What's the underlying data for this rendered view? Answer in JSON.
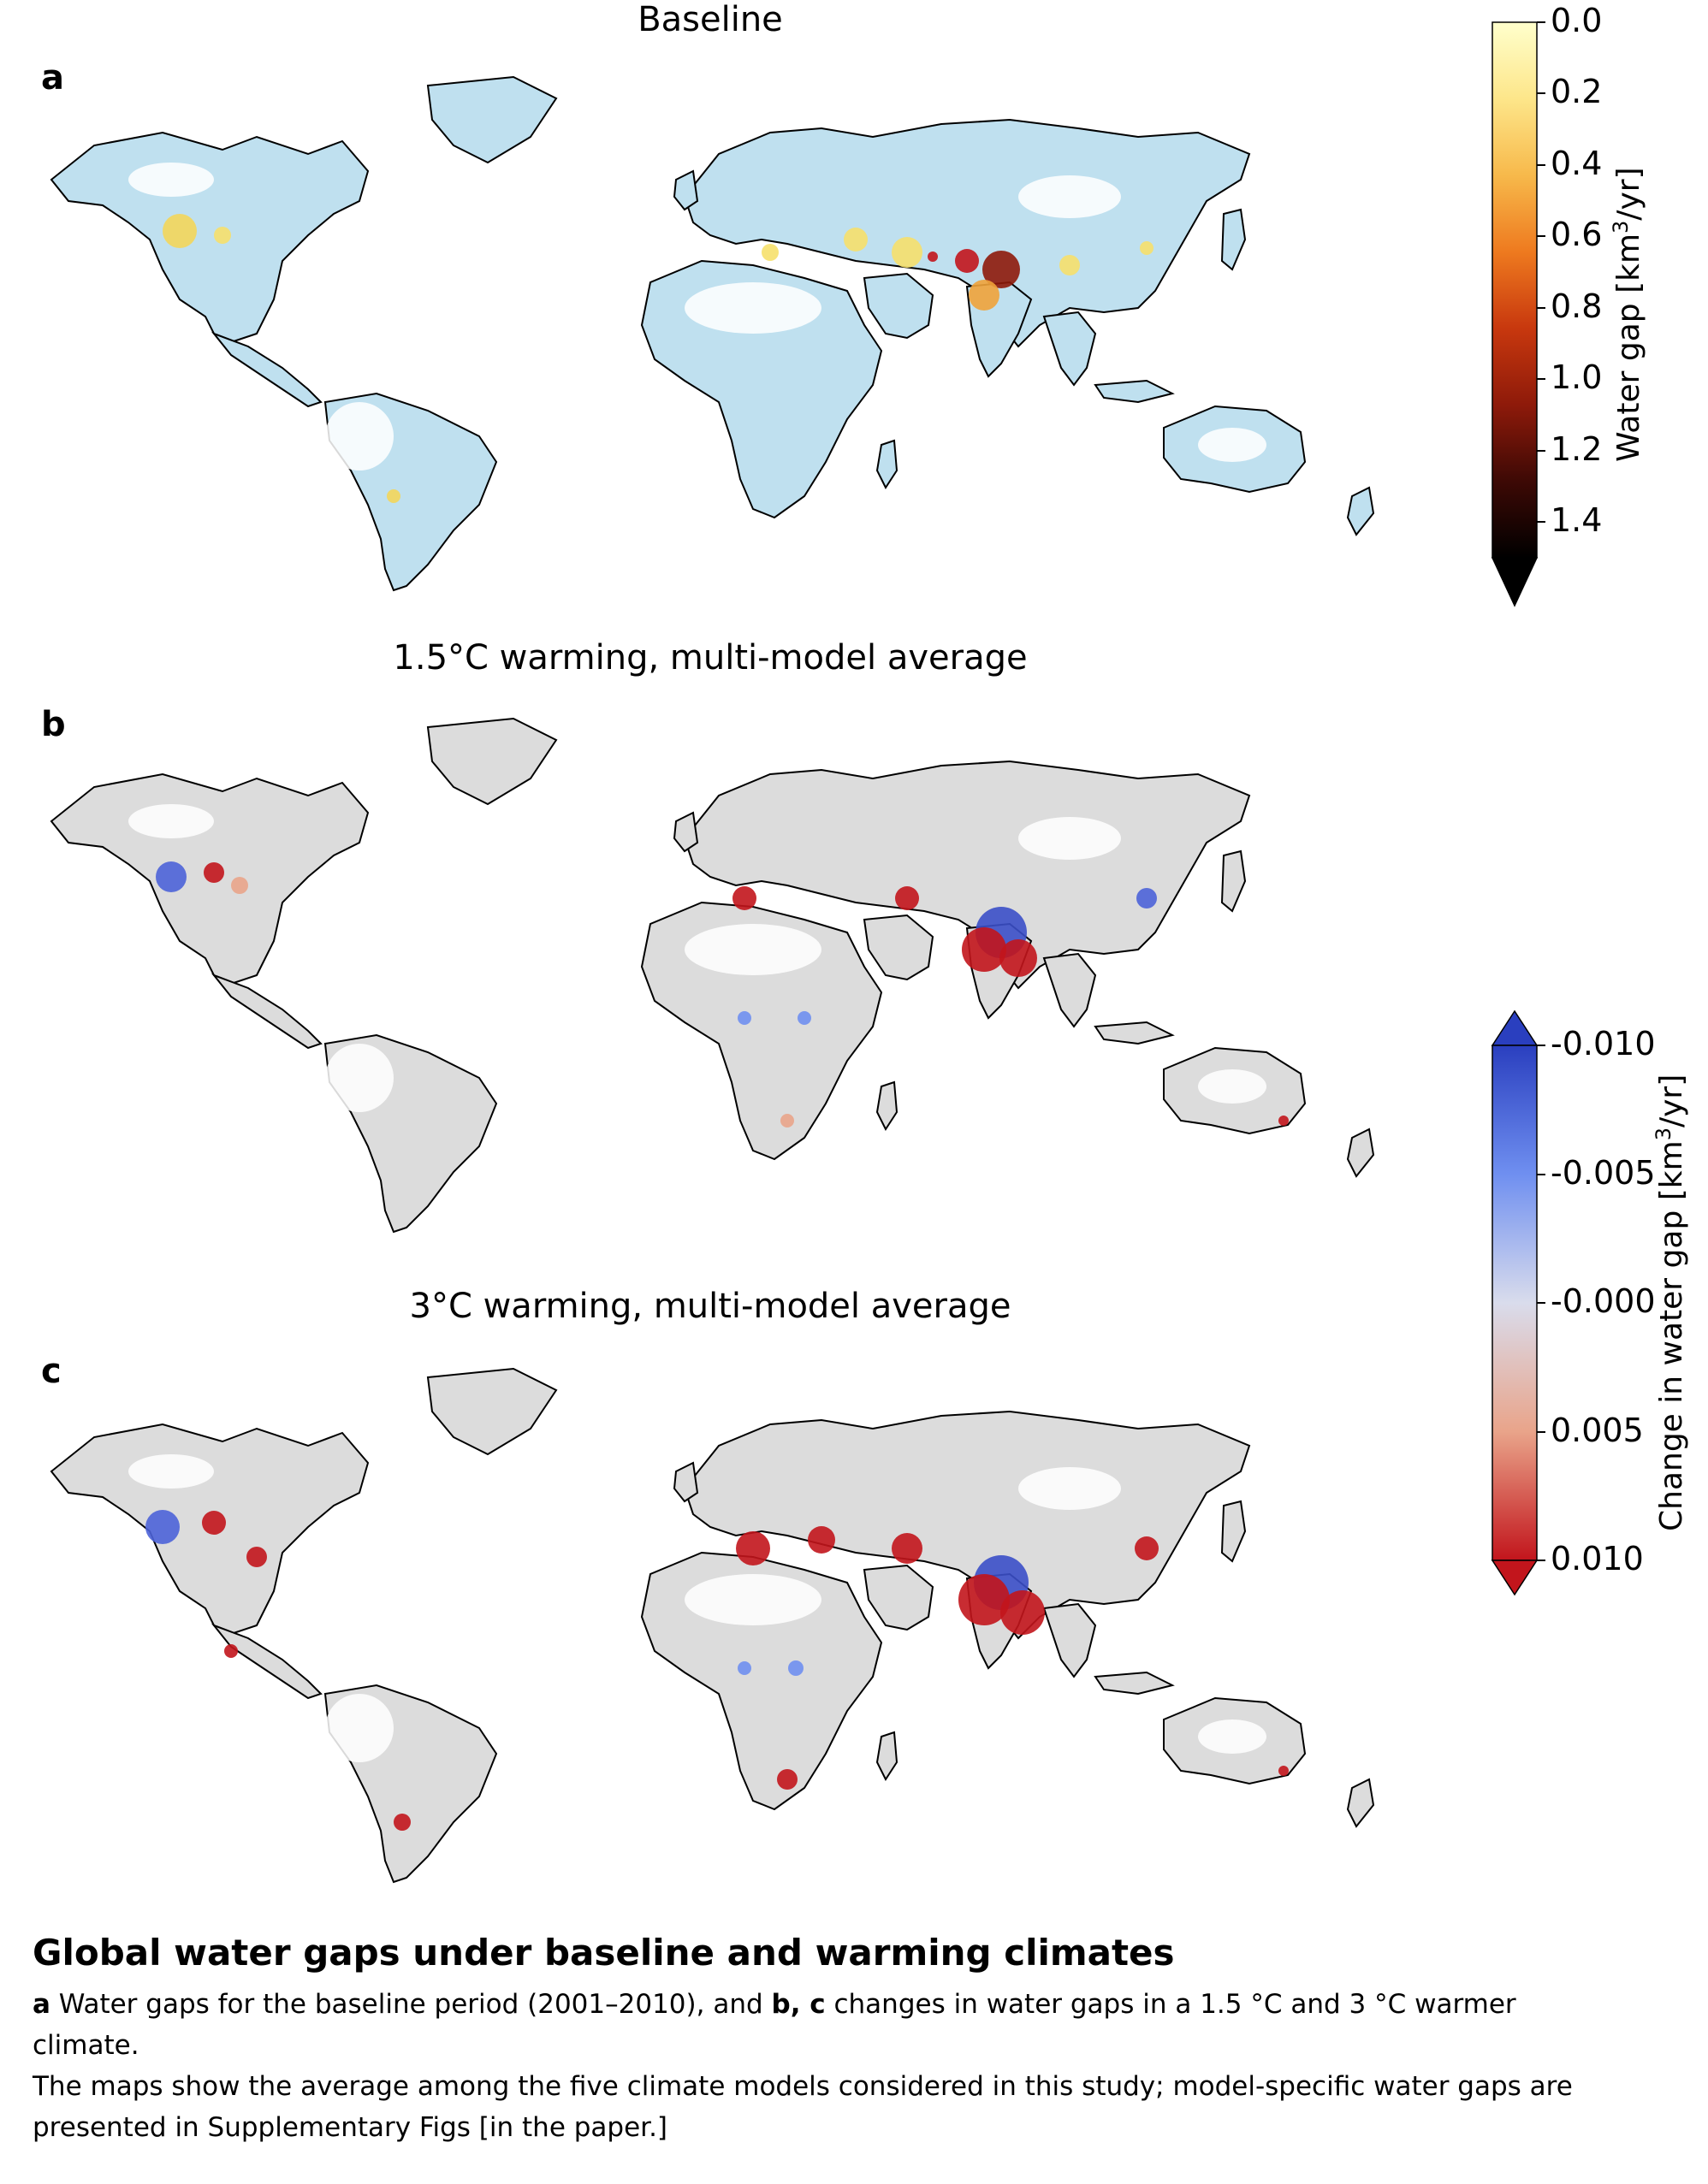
{
  "panels": [
    {
      "letter": "a",
      "title": "Baseline",
      "mode": "baseline"
    },
    {
      "letter": "b",
      "title": "1.5°C warming, multi-model average",
      "mode": "change15"
    },
    {
      "letter": "c",
      "title": "3°C warming, multi-model average",
      "mode": "change30"
    }
  ],
  "colorbar_baseline": {
    "label_main": "Water gap [km",
    "label_sup": "3",
    "label_end": "/yr]",
    "ticks": [
      "0.0",
      "0.2",
      "0.4",
      "0.6",
      "0.8",
      "1.0",
      "1.2",
      "1.4"
    ],
    "range": [
      0.0,
      1.5
    ],
    "extend": "max",
    "colors": [
      "#ffffcc",
      "#fde68a",
      "#f7b94b",
      "#ee7a1f",
      "#c8380e",
      "#8e1a0a",
      "#3d0905",
      "#000000"
    ]
  },
  "colorbar_change": {
    "label_main": "Change in water gap [km",
    "label_sup": "3",
    "label_end": "/yr]",
    "ticks": [
      "-0.010",
      "-0.005",
      "-0.000",
      "0.005",
      "0.010"
    ],
    "range": [
      -0.01,
      0.01
    ],
    "extend": "both",
    "colors": [
      "#2a3fbf",
      "#6f8ff0",
      "#d9dcec",
      "#e9a48a",
      "#c2151c"
    ]
  },
  "caption": {
    "title": "Global water gaps under baseline and warming climates",
    "line1_bold_a": "a",
    "line1_text_a": " Water gaps for the baseline period (2001–2010), and ",
    "line1_bold_bc": "b, c",
    "line1_text_bc": " changes in water gaps in a 1.5 °C and 3 °C warmer",
    "line2": "climate.",
    "line3": "The maps show the average among the five climate models considered in this study; model-specific water gaps are",
    "line4": "presented in Supplementary Figs [in the paper.]"
  },
  "colors": {
    "baseline_land": "#bfe0ef",
    "change_land": "#dcdcdc",
    "coastline": "#000000",
    "no_data": "#ffffff"
  }
}
